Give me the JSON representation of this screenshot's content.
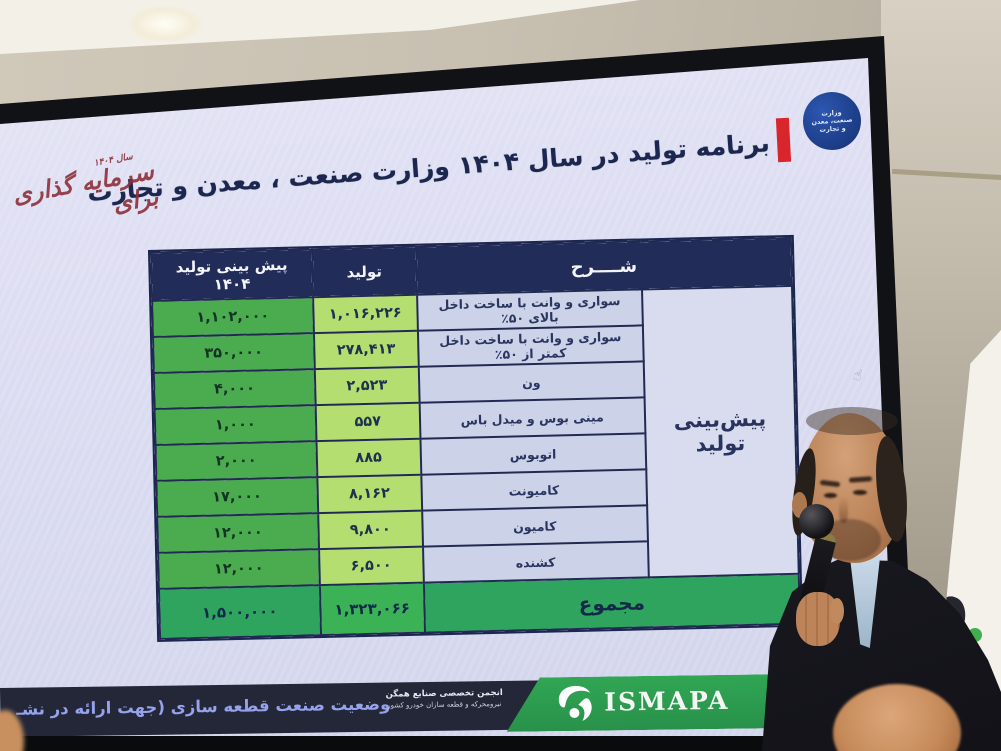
{
  "slide": {
    "title": "برنامه تولید در سال ۱۴۰۴ وزارت صنعت ، معدن و تجارت",
    "seal": {
      "lines": [
        "وزارت",
        "صنعت، معدن",
        "و تجارت"
      ]
    },
    "calligraphy": {
      "small": "سال ۱۴۰۴",
      "main": "سرمایه گذاری برای"
    },
    "table": {
      "headers": {
        "desc": "شــــرح",
        "production": "تولید",
        "forecast": "پیش بینی تولید ۱۴۰۴"
      },
      "side_label": "پیش‌بینی تولید",
      "rows": [
        {
          "desc": "سواری و وانت با ساخت داخل بالای ۵۰٪",
          "production": "۱,۰۱۶,۲۲۶",
          "forecast": "۱,۱۰۲,۰۰۰"
        },
        {
          "desc": "سواری و وانت با ساخت داخل کمتر از ۵۰٪",
          "production": "۲۷۸,۴۱۳",
          "forecast": "۳۵۰,۰۰۰"
        },
        {
          "desc": "ون",
          "production": "۲,۵۲۳",
          "forecast": "۴,۰۰۰"
        },
        {
          "desc": "مینی بوس و میدل باس",
          "production": "۵۵۷",
          "forecast": "۱,۰۰۰"
        },
        {
          "desc": "اتوبوس",
          "production": "۸۸۵",
          "forecast": "۲,۰۰۰"
        },
        {
          "desc": "کامیونت",
          "production": "۸,۱۶۲",
          "forecast": "۱۷,۰۰۰"
        },
        {
          "desc": "کامیون",
          "production": "۹,۸۰۰",
          "forecast": "۱۲,۰۰۰"
        },
        {
          "desc": "کشنده",
          "production": "۶,۵۰۰",
          "forecast": "۱۲,۰۰۰"
        }
      ],
      "total": {
        "label": "مجموع",
        "production": "۱,۳۲۳,۰۶۶",
        "forecast": "۱,۵۰۰,۰۰۰"
      }
    },
    "footer": {
      "status_text": "وضعیت صنعت قطعه سازی (جهت ارائه در نشـ",
      "association_line1": "انجمن تخصصی صنایع همگن",
      "association_line2": "نیرومحرکه و قطعه سازان خودرو کشور",
      "ismapa": "ISMAPA"
    },
    "banner_partial_text": "IS"
  },
  "icons": {
    "hand_cursor": "☝"
  },
  "colors": {
    "header_navy": "#222c59",
    "cell_lavender": "#ccd3e9",
    "cell_lime": "#b5de71",
    "cell_green": "#4bab4f",
    "total_green": "#2fa45e",
    "accent_red": "#d9262c",
    "banner_green": "#2f9e4d",
    "footer_text": "#96a3ec"
  }
}
